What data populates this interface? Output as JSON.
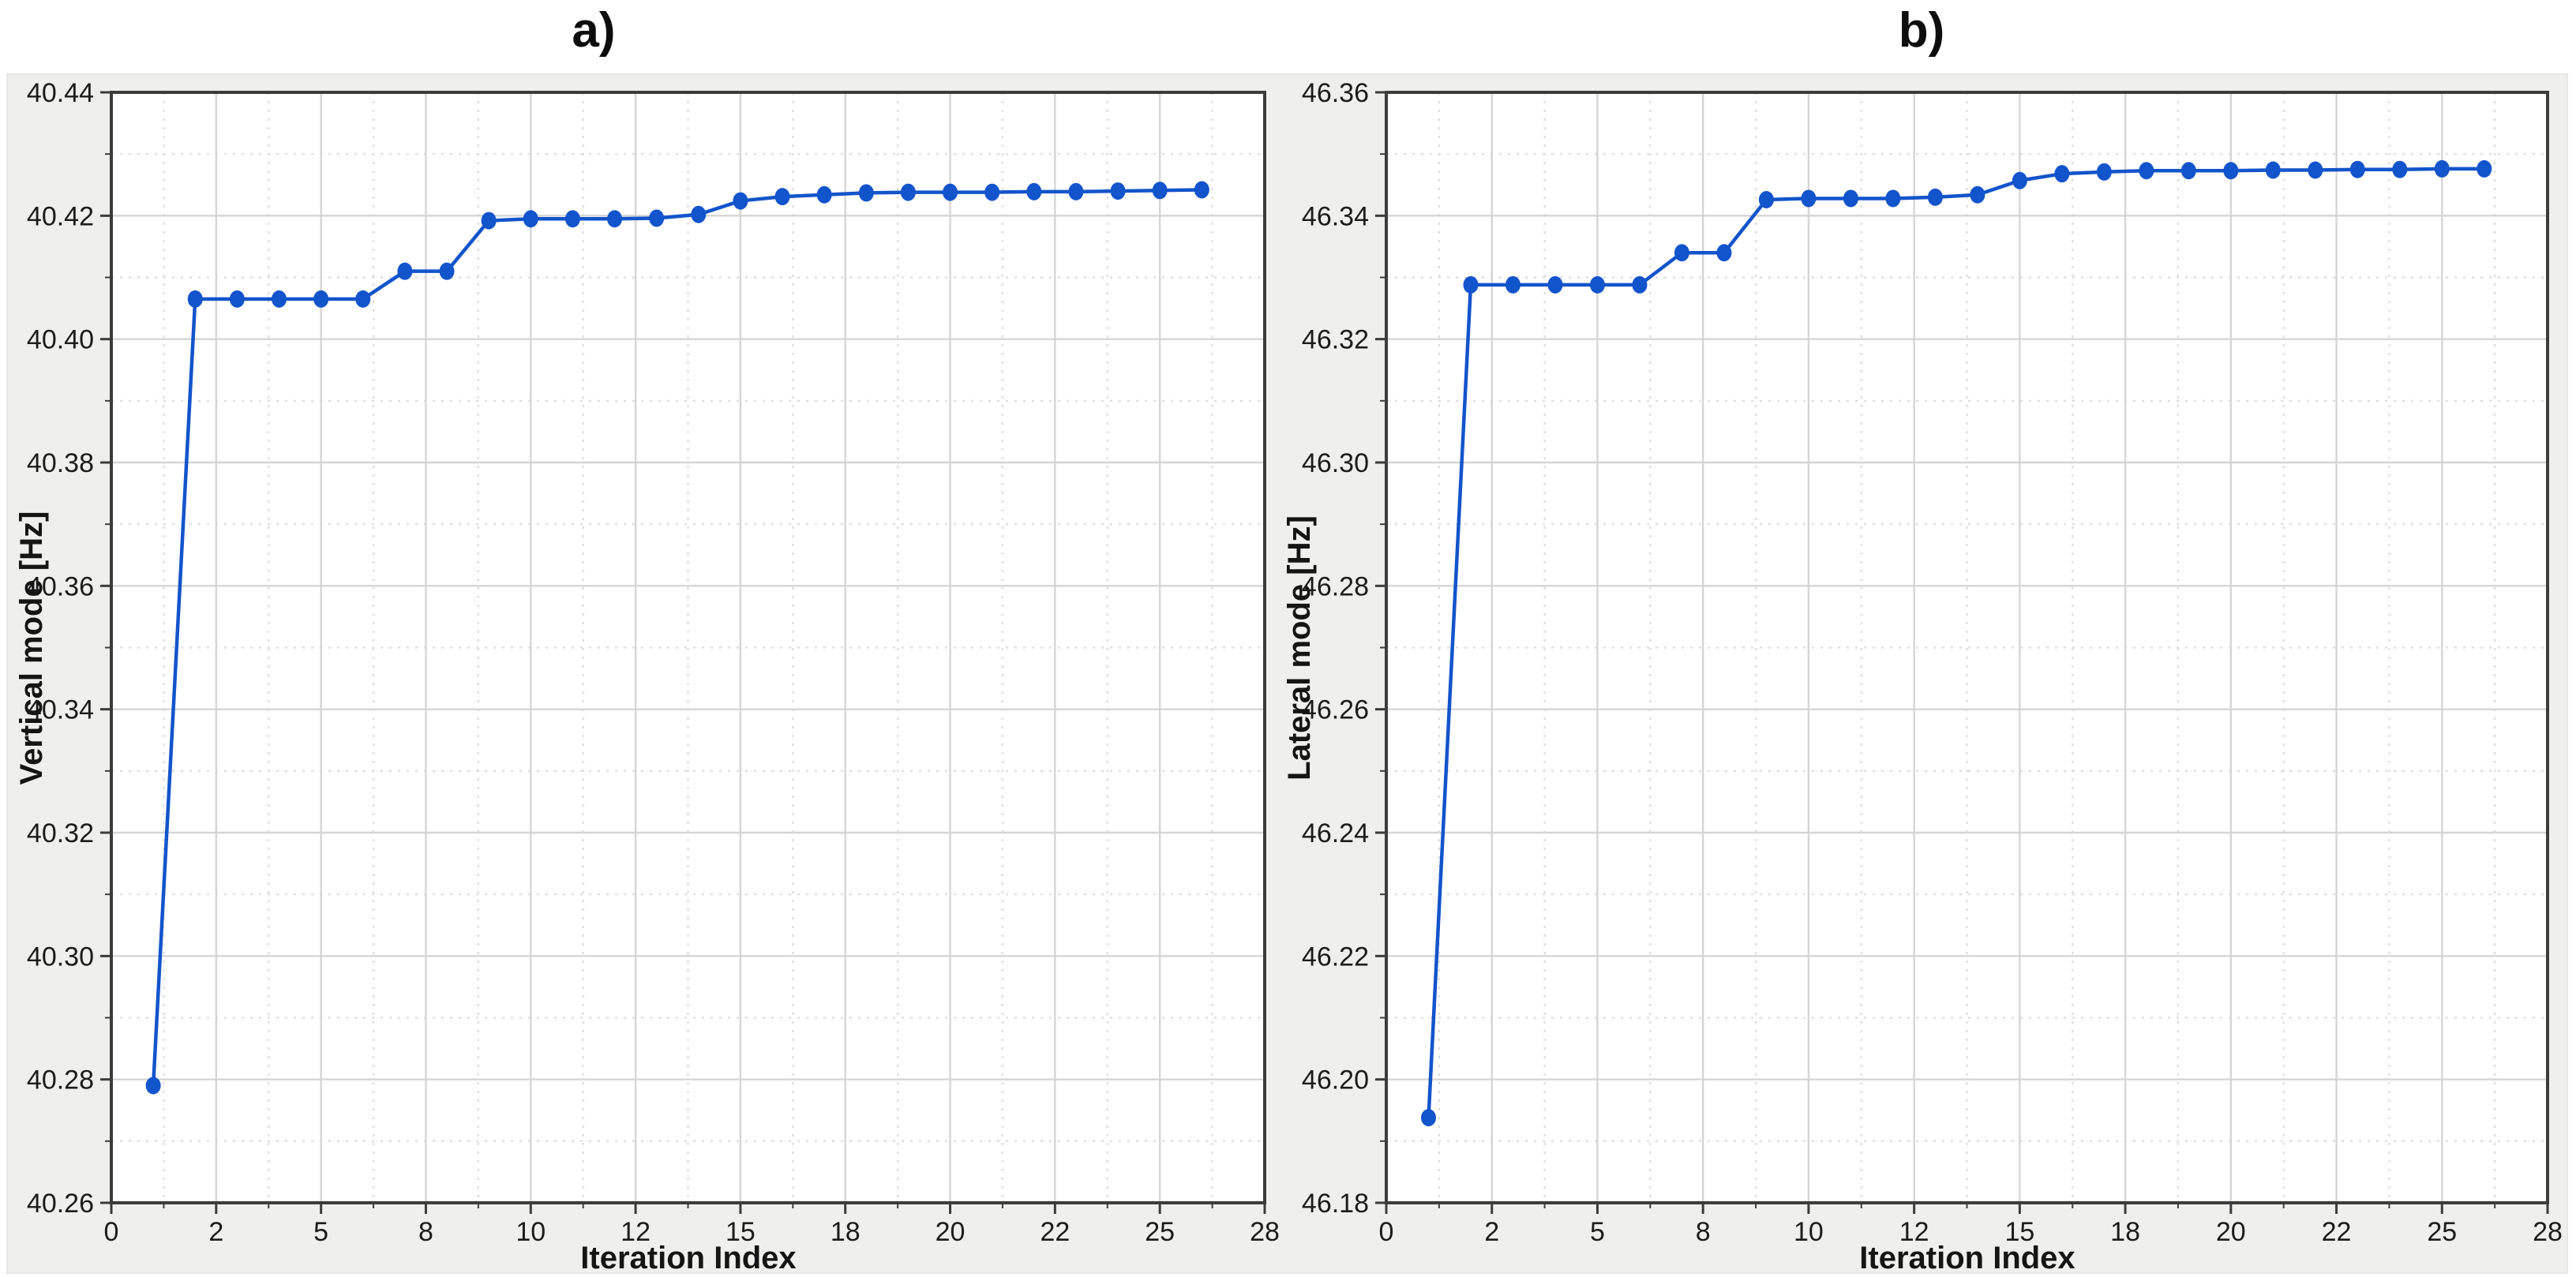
{
  "figure": {
    "background": "#ffffff",
    "panel_background": "#efefed",
    "plot_background": "#ffffff",
    "axis_color": "#3c3c3c",
    "grid_major_color": "#d5d5d5",
    "grid_minor_color": "#dcdcdc",
    "line_color": "#1254cb",
    "marker_color": "#1254cb",
    "tick_text_color": "#1c1c1c"
  },
  "chart_data": [
    {
      "type": "line",
      "title": "a)",
      "xlabel": "Iteration Index",
      "ylabel": "Vertical mode [Hz]",
      "xlim": [
        0,
        27.5
      ],
      "ylim": [
        40.26,
        40.44
      ],
      "grid": "on",
      "legend": "none",
      "xticks": {
        "values": [
          0,
          2.5,
          5,
          7.5,
          10,
          12.5,
          15,
          17.5,
          20,
          22.5,
          25,
          27.5
        ],
        "labels": [
          "0",
          "2",
          "5",
          "8",
          "10",
          "12",
          "15",
          "18",
          "20",
          "22",
          "25",
          "28"
        ]
      },
      "yticks": {
        "values": [
          40.26,
          40.28,
          40.3,
          40.32,
          40.34,
          40.36,
          40.38,
          40.4,
          40.42,
          40.44
        ],
        "labels": [
          "40.26",
          "40.28",
          "40.30",
          "40.32",
          "40.34",
          "40.36",
          "40.38",
          "40.40",
          "40.42",
          "40.44"
        ]
      },
      "x_minor_step": 1.25,
      "y_minor_step": 0.01,
      "x": [
        1,
        2,
        3,
        4,
        5,
        6,
        7,
        8,
        9,
        10,
        11,
        12,
        13,
        14,
        15,
        16,
        17,
        18,
        19,
        20,
        21,
        22,
        23,
        24,
        25,
        26
      ],
      "values": [
        40.279,
        40.4065,
        40.4065,
        40.4065,
        40.4065,
        40.4065,
        40.411,
        40.411,
        40.4192,
        40.4195,
        40.4195,
        40.4195,
        40.4196,
        40.4202,
        40.4224,
        40.4231,
        40.4234,
        40.4237,
        40.4238,
        40.4238,
        40.4238,
        40.4239,
        40.4239,
        40.424,
        40.4241,
        40.4242
      ]
    },
    {
      "type": "line",
      "title": "b)",
      "xlabel": "Iteration Index",
      "ylabel": "Lateral mode [Hz]",
      "xlim": [
        0,
        27.5
      ],
      "ylim": [
        46.18,
        46.36
      ],
      "grid": "on",
      "legend": "none",
      "xticks": {
        "values": [
          0,
          2.5,
          5,
          7.5,
          10,
          12.5,
          15,
          17.5,
          20,
          22.5,
          25,
          27.5
        ],
        "labels": [
          "0",
          "2",
          "5",
          "8",
          "10",
          "12",
          "15",
          "18",
          "20",
          "22",
          "25",
          "28"
        ]
      },
      "yticks": {
        "values": [
          46.18,
          46.2,
          46.22,
          46.24,
          46.26,
          46.28,
          46.3,
          46.32,
          46.34,
          46.36
        ],
        "labels": [
          "46.18",
          "46.20",
          "46.22",
          "46.24",
          "46.26",
          "46.28",
          "46.30",
          "46.32",
          "46.34",
          "46.36"
        ]
      },
      "x_minor_step": 1.25,
      "y_minor_step": 0.01,
      "x": [
        1,
        2,
        3,
        4,
        5,
        6,
        7,
        8,
        9,
        10,
        11,
        12,
        13,
        14,
        15,
        16,
        17,
        18,
        19,
        20,
        21,
        22,
        23,
        24,
        25,
        26
      ],
      "values": [
        46.1938,
        46.3288,
        46.3288,
        46.3288,
        46.3288,
        46.3288,
        46.334,
        46.334,
        46.3426,
        46.3428,
        46.3428,
        46.3428,
        46.343,
        46.3434,
        46.3457,
        46.3468,
        46.3471,
        46.3473,
        46.3473,
        46.3473,
        46.3474,
        46.3474,
        46.3475,
        46.3475,
        46.3476,
        46.3476
      ]
    }
  ]
}
